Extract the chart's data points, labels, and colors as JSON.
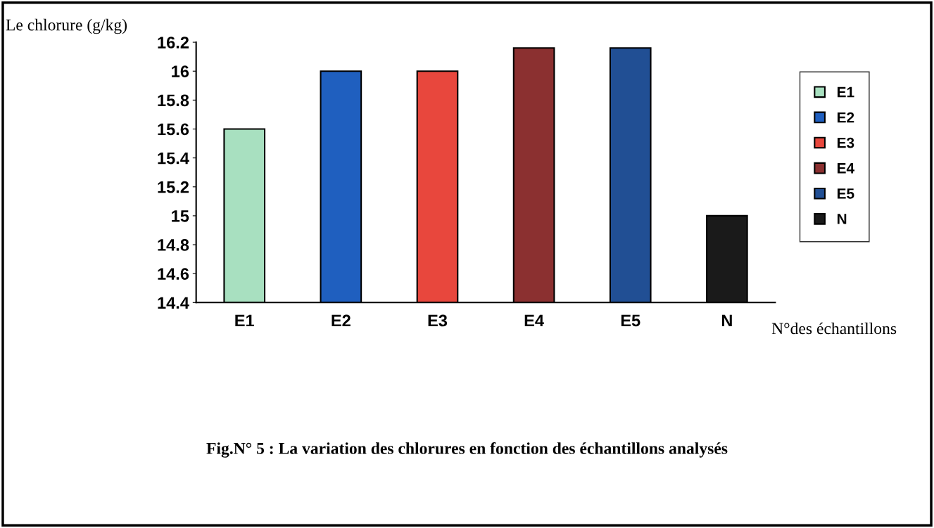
{
  "chart_data": {
    "type": "bar",
    "title": "Fig.N° 5 : La variation des chlorures en fonction des échantillons analysés",
    "ylabel": "Le chlorure (g/kg)",
    "xlabel": "N°des échantillons",
    "categories": [
      "E1",
      "E2",
      "E3",
      "E4",
      "E5",
      "N"
    ],
    "series": [
      {
        "name": "E1",
        "color": "#a8e0c0",
        "values": [
          15.6,
          null,
          null,
          null,
          null,
          null
        ]
      },
      {
        "name": "E2",
        "color": "#1f5fbf",
        "values": [
          null,
          16.0,
          null,
          null,
          null,
          null
        ]
      },
      {
        "name": "E3",
        "color": "#e8473d",
        "values": [
          null,
          null,
          16.0,
          null,
          null,
          null
        ]
      },
      {
        "name": "E4",
        "color": "#8b3030",
        "values": [
          null,
          null,
          null,
          16.16,
          null,
          null
        ]
      },
      {
        "name": "E5",
        "color": "#214f94",
        "values": [
          null,
          null,
          null,
          null,
          16.16,
          null
        ]
      },
      {
        "name": "N",
        "color": "#1a1a1a",
        "values": [
          null,
          null,
          null,
          null,
          null,
          15.0
        ]
      }
    ],
    "ylim": [
      14.4,
      16.2
    ],
    "yticks": [
      14.4,
      14.6,
      14.8,
      15,
      15.2,
      15.4,
      15.6,
      15.8,
      16,
      16.2
    ],
    "grid": false,
    "legend": "right"
  }
}
